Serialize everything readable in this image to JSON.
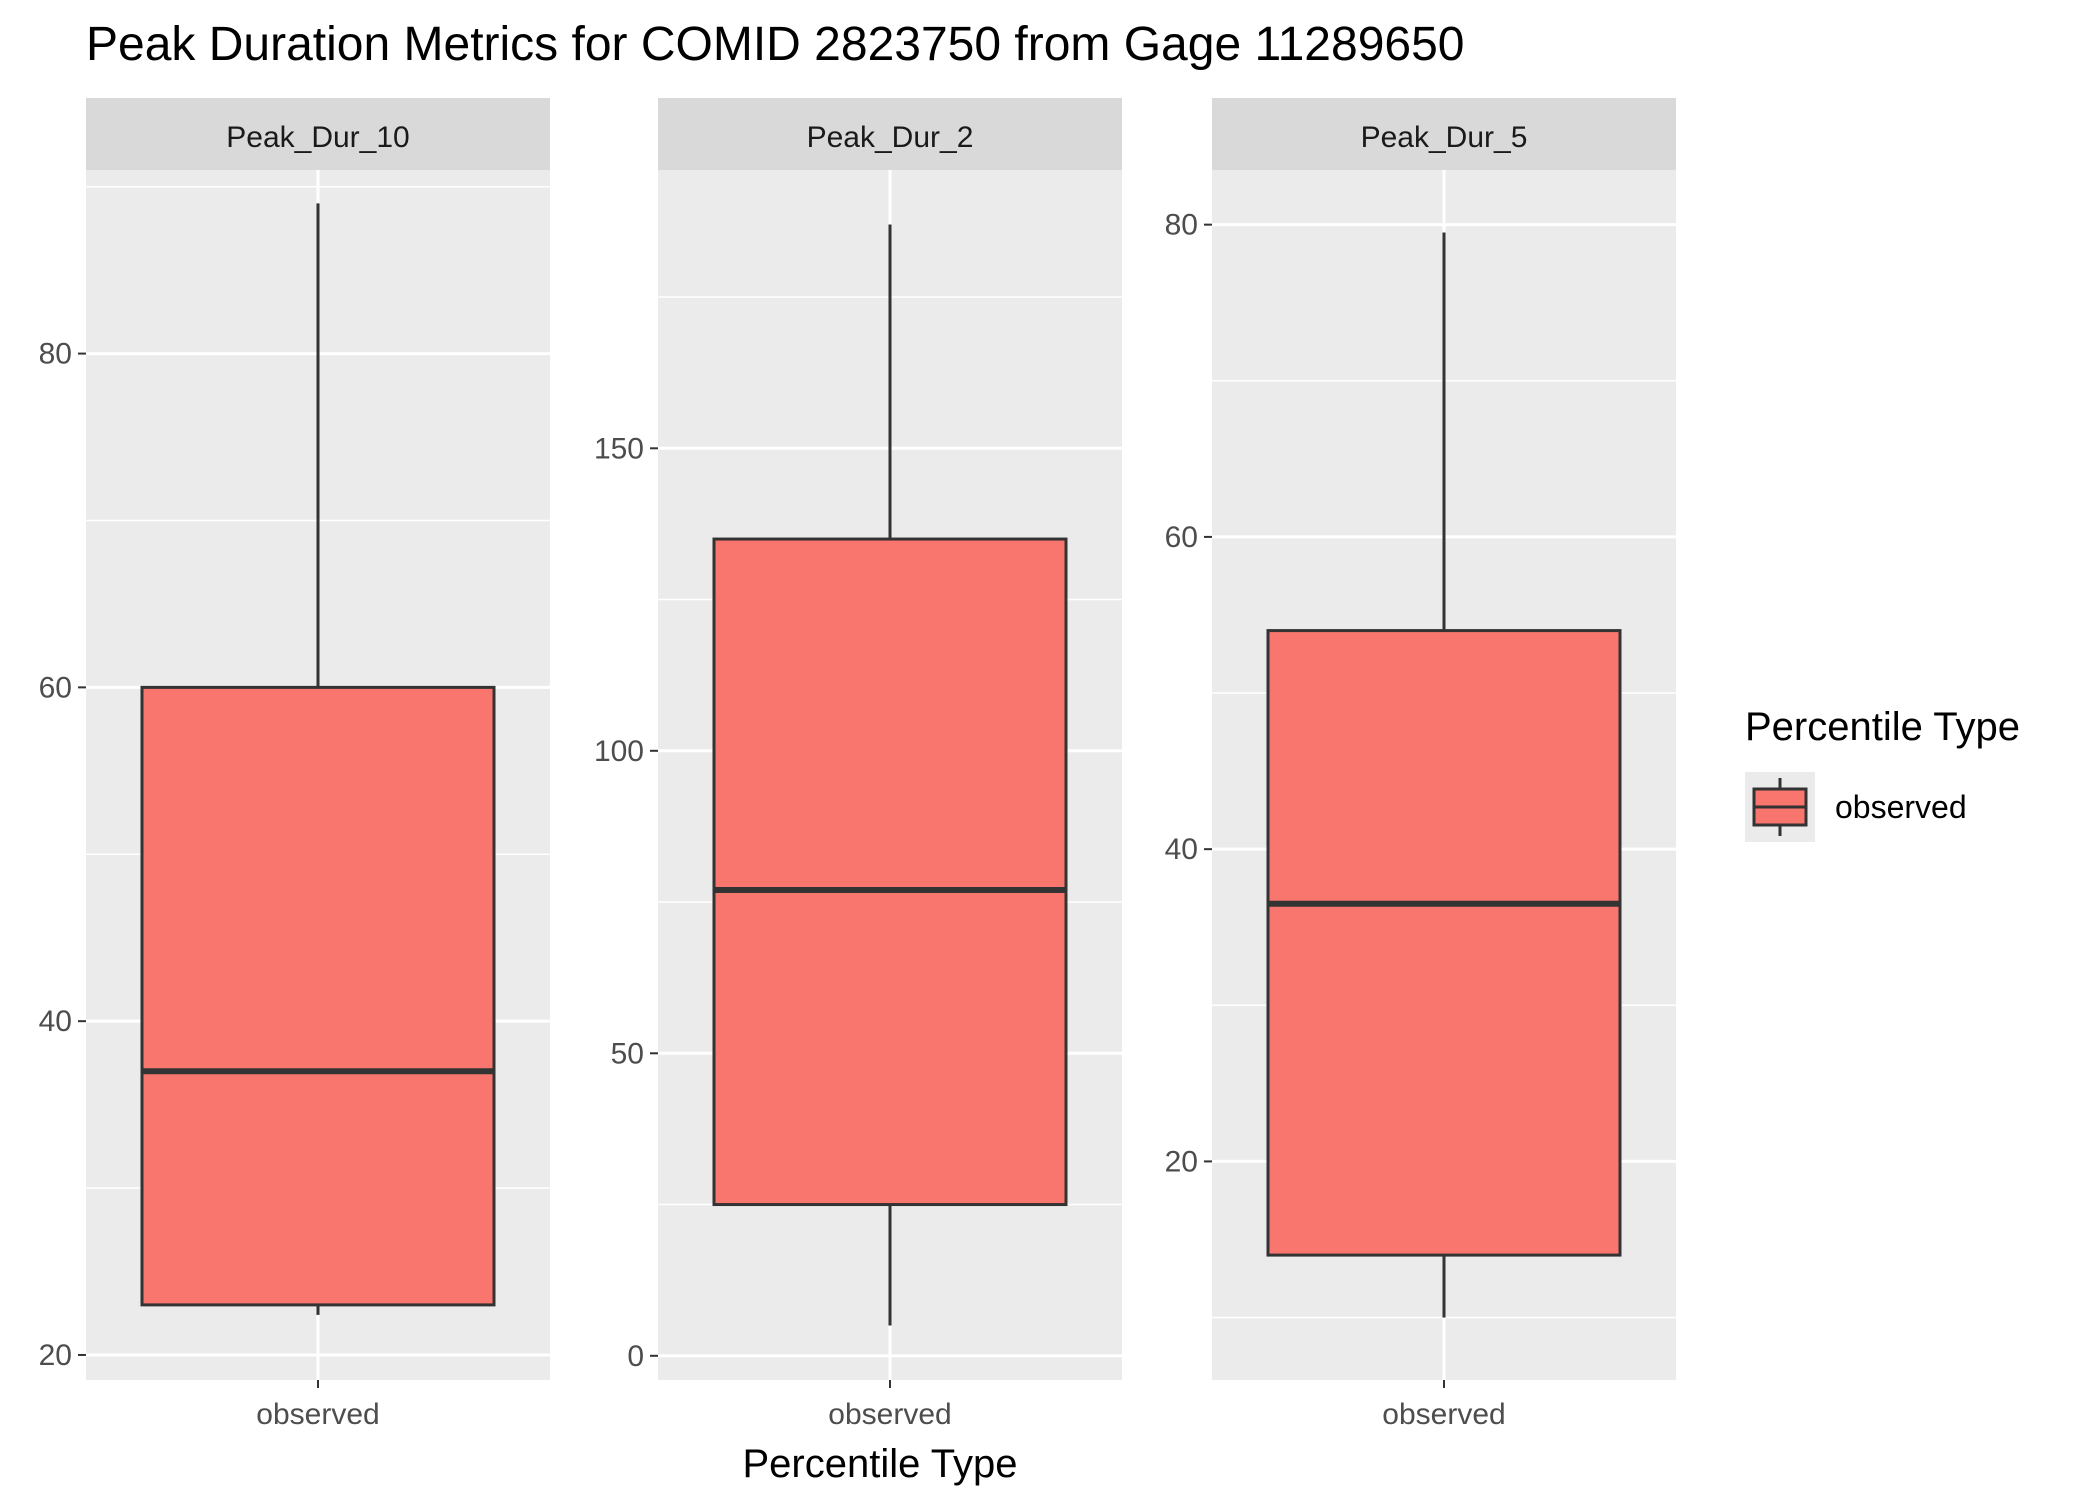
{
  "chart_data": {
    "type": "boxplot",
    "title": "Peak Duration Metrics for COMID 2823750 from Gage 11289650",
    "xlabel": "Percentile Type",
    "ylabel": "",
    "fill_color": "#F8766D",
    "legend": {
      "title": "Percentile Type",
      "items": [
        {
          "label": "observed",
          "color": "#F8766D"
        }
      ],
      "position": "right"
    },
    "facets": [
      {
        "label": "Peak_Dur_10",
        "category": "observed",
        "ylim": [
          18.5,
          91
        ],
        "yticks": [
          20,
          40,
          60,
          80
        ],
        "ytick_labels": [
          "20",
          "40",
          "60",
          "80"
        ],
        "box": {
          "lower_whisker": 22.4,
          "q1": 23,
          "median": 37,
          "q3": 60,
          "upper_whisker": 89
        }
      },
      {
        "label": "Peak_Dur_2",
        "category": "observed",
        "ylim": [
          -4,
          196
        ],
        "yticks": [
          0,
          50,
          100,
          150
        ],
        "ytick_labels": [
          "0",
          "50",
          "100",
          "150"
        ],
        "box": {
          "lower_whisker": 5,
          "q1": 25,
          "median": 77,
          "q3": 135,
          "upper_whisker": 187
        }
      },
      {
        "label": "Peak_Dur_5",
        "category": "observed",
        "ylim": [
          6,
          83.5
        ],
        "yticks": [
          20,
          40,
          60,
          80
        ],
        "ytick_labels": [
          "20",
          "40",
          "60",
          "80"
        ],
        "box": {
          "lower_whisker": 10,
          "q1": 14,
          "median": 36.5,
          "q3": 54,
          "upper_whisker": 79.5
        }
      }
    ]
  }
}
